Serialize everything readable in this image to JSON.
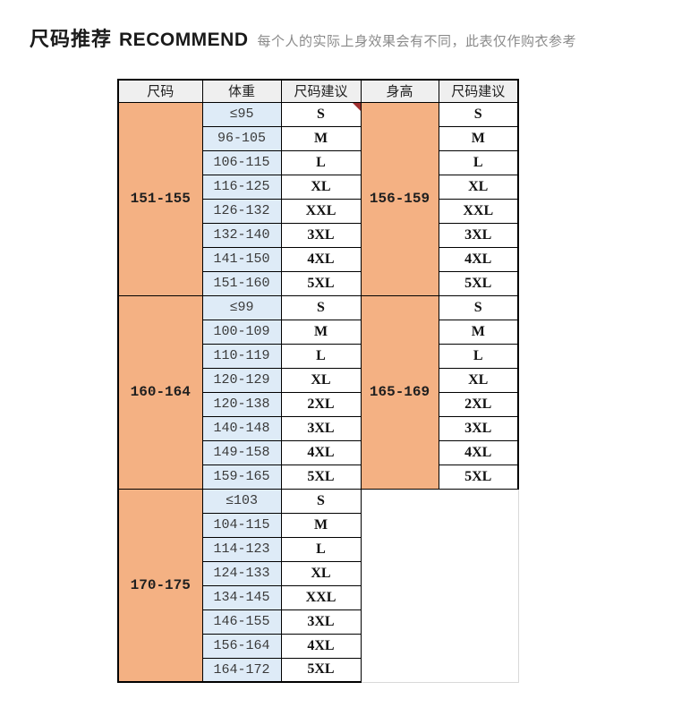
{
  "header": {
    "title_cn": "尺码推荐",
    "title_en": "RECOMMEND",
    "subtitle": "每个人的实际上身效果会有不同，此表仅作购衣参考"
  },
  "table": {
    "columns": [
      "尺码",
      "体重",
      "尺码建议",
      "身高",
      "尺码建议"
    ],
    "groups": [
      {
        "height_left": "151-155",
        "height_right": "156-159",
        "has_note_marker": true,
        "rows": [
          {
            "weight": "≤95",
            "size": "S"
          },
          {
            "weight": "96-105",
            "size": "M"
          },
          {
            "weight": "106-115",
            "size": "L"
          },
          {
            "weight": "116-125",
            "size": "XL"
          },
          {
            "weight": "126-132",
            "size": "XXL"
          },
          {
            "weight": "132-140",
            "size": "3XL"
          },
          {
            "weight": "141-150",
            "size": "4XL"
          },
          {
            "weight": "151-160",
            "size": "5XL"
          }
        ]
      },
      {
        "height_left": "160-164",
        "height_right": "165-169",
        "has_note_marker": false,
        "rows": [
          {
            "weight": "≤99",
            "size": "S"
          },
          {
            "weight": "100-109",
            "size": "M"
          },
          {
            "weight": "110-119",
            "size": "L"
          },
          {
            "weight": "120-129",
            "size": "XL"
          },
          {
            "weight": "120-138",
            "size": "2XL"
          },
          {
            "weight": "140-148",
            "size": "3XL"
          },
          {
            "weight": "149-158",
            "size": "4XL"
          },
          {
            "weight": "159-165",
            "size": "5XL"
          }
        ]
      },
      {
        "height_left": "170-175",
        "height_right": null,
        "has_note_marker": false,
        "rows": [
          {
            "weight": "≤103",
            "size": "S"
          },
          {
            "weight": "104-115",
            "size": "M"
          },
          {
            "weight": "114-123",
            "size": "L"
          },
          {
            "weight": "124-133",
            "size": "XL"
          },
          {
            "weight": "134-145",
            "size": "XXL"
          },
          {
            "weight": "146-155",
            "size": "3XL"
          },
          {
            "weight": "156-164",
            "size": "4XL"
          },
          {
            "weight": "164-172",
            "size": "5XL"
          }
        ]
      }
    ]
  },
  "colors": {
    "height_cell_orange": "#f4b183",
    "weight_cell_blue": "#deebf7",
    "header_gray": "#efefef",
    "border_black": "#000000",
    "faint_border": "#d9d9d9",
    "note_marker_red": "#a03030",
    "subtitle_gray": "#8a8a8a"
  }
}
